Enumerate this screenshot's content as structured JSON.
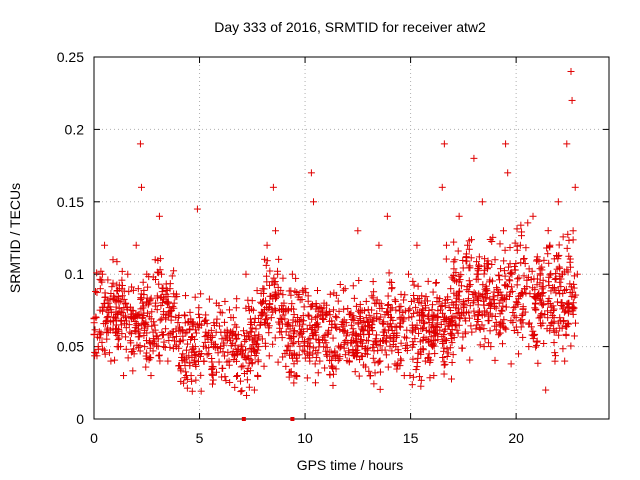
{
  "chart_data": {
    "type": "scatter",
    "title": "Day 333 of 2016, SRMTID for receiver atw2",
    "xlabel": "GPS time / hours",
    "ylabel": "SRMTID / TECUs",
    "xlim": [
      0,
      24.4
    ],
    "ylim": [
      0,
      0.25
    ],
    "x_ticks": [
      0,
      5,
      10,
      15,
      20
    ],
    "x_tick_labels": [
      "0",
      "5",
      "10",
      "15",
      "20"
    ],
    "y_ticks": [
      0,
      0.05,
      0.1,
      0.15,
      0.2,
      0.25
    ],
    "y_tick_labels": [
      "0",
      "0.05",
      "0.1",
      "0.15",
      "0.2",
      "0.25"
    ],
    "grid": true,
    "marker": "+",
    "color": "#e00000",
    "series": [
      {
        "name": "SRMTID",
        "points": [
          [
            0.1,
            0.07
          ],
          [
            0.2,
            0.05
          ],
          [
            0.3,
            0.09
          ],
          [
            0.4,
            0.1
          ],
          [
            0.5,
            0.12
          ],
          [
            0.6,
            0.06
          ],
          [
            0.7,
            0.08
          ],
          [
            0.8,
            0.04
          ],
          [
            0.9,
            0.11
          ],
          [
            1.0,
            0.07
          ],
          [
            1.1,
            0.05
          ],
          [
            1.2,
            0.09
          ],
          [
            1.3,
            0.065
          ],
          [
            1.4,
            0.03
          ],
          [
            1.5,
            0.08
          ],
          [
            1.6,
            0.1
          ],
          [
            1.7,
            0.06
          ],
          [
            1.8,
            0.075
          ],
          [
            1.9,
            0.045
          ],
          [
            2.0,
            0.12
          ],
          [
            2.1,
            0.09
          ],
          [
            2.2,
            0.19
          ],
          [
            2.25,
            0.16
          ],
          [
            2.3,
            0.07
          ],
          [
            2.4,
            0.05
          ],
          [
            2.5,
            0.1
          ],
          [
            2.6,
            0.08
          ],
          [
            2.7,
            0.03
          ],
          [
            2.8,
            0.06
          ],
          [
            2.9,
            0.11
          ],
          [
            3.0,
            0.085
          ],
          [
            3.1,
            0.14
          ],
          [
            3.2,
            0.1
          ],
          [
            3.3,
            0.05
          ],
          [
            3.4,
            0.07
          ],
          [
            3.5,
            0.04
          ],
          [
            3.6,
            0.09
          ],
          [
            3.7,
            0.06
          ],
          [
            3.8,
            0.08
          ],
          [
            3.9,
            0.05
          ],
          [
            4.0,
            0.07
          ],
          [
            4.2,
            0.045
          ],
          [
            4.4,
            0.06
          ],
          [
            4.6,
            0.03
          ],
          [
            4.8,
            0.05
          ],
          [
            4.9,
            0.145
          ],
          [
            5.0,
            0.07
          ],
          [
            5.2,
            0.04
          ],
          [
            5.4,
            0.055
          ],
          [
            5.6,
            0.035
          ],
          [
            5.8,
            0.08
          ],
          [
            6.0,
            0.05
          ],
          [
            6.2,
            0.06
          ],
          [
            6.4,
            0.04
          ],
          [
            6.6,
            0.07
          ],
          [
            6.8,
            0.03
          ],
          [
            7.0,
            0.05
          ],
          [
            7.2,
            0.1
          ],
          [
            7.3,
            0.035
          ],
          [
            7.4,
            0.06
          ],
          [
            7.6,
            0.02
          ],
          [
            7.8,
            0.05
          ],
          [
            8.0,
            0.09
          ],
          [
            8.2,
            0.12
          ],
          [
            8.4,
            0.07
          ],
          [
            8.5,
            0.16
          ],
          [
            8.6,
            0.13
          ],
          [
            8.7,
            0.1
          ],
          [
            8.8,
            0.06
          ],
          [
            9.0,
            0.08
          ],
          [
            9.2,
            0.05
          ],
          [
            9.4,
            0.1
          ],
          [
            9.6,
            0.03
          ],
          [
            9.8,
            0.06
          ],
          [
            10.0,
            0.09
          ],
          [
            10.2,
            0.05
          ],
          [
            10.3,
            0.17
          ],
          [
            10.4,
            0.15
          ],
          [
            10.5,
            0.07
          ],
          [
            10.7,
            0.04
          ],
          [
            10.9,
            0.08
          ],
          [
            11.1,
            0.06
          ],
          [
            11.3,
            0.035
          ],
          [
            11.5,
            0.07
          ],
          [
            11.7,
            0.05
          ],
          [
            11.9,
            0.09
          ],
          [
            12.1,
            0.04
          ],
          [
            12.3,
            0.06
          ],
          [
            12.5,
            0.13
          ],
          [
            12.7,
            0.05
          ],
          [
            12.9,
            0.07
          ],
          [
            13.1,
            0.03
          ],
          [
            13.3,
            0.08
          ],
          [
            13.5,
            0.12
          ],
          [
            13.7,
            0.06
          ],
          [
            13.9,
            0.14
          ],
          [
            14.1,
            0.09
          ],
          [
            14.3,
            0.05
          ],
          [
            14.5,
            0.07
          ],
          [
            14.7,
            0.03
          ],
          [
            14.9,
            0.1
          ],
          [
            15.1,
            0.06
          ],
          [
            15.3,
            0.12
          ],
          [
            15.5,
            0.08
          ],
          [
            15.7,
            0.04
          ],
          [
            15.9,
            0.06
          ],
          [
            16.1,
            0.03
          ],
          [
            16.3,
            0.07
          ],
          [
            16.5,
            0.16
          ],
          [
            16.6,
            0.19
          ],
          [
            16.7,
            0.12
          ],
          [
            16.9,
            0.09
          ],
          [
            17.1,
            0.11
          ],
          [
            17.3,
            0.14
          ],
          [
            17.5,
            0.08
          ],
          [
            17.7,
            0.12
          ],
          [
            17.9,
            0.06
          ],
          [
            18.0,
            0.18
          ],
          [
            18.2,
            0.1
          ],
          [
            18.4,
            0.15
          ],
          [
            18.6,
            0.09
          ],
          [
            18.8,
            0.05
          ],
          [
            19.0,
            0.11
          ],
          [
            19.2,
            0.08
          ],
          [
            19.4,
            0.13
          ],
          [
            19.5,
            0.19
          ],
          [
            19.6,
            0.17
          ],
          [
            19.8,
            0.1
          ],
          [
            20.0,
            0.07
          ],
          [
            20.2,
            0.12
          ],
          [
            20.4,
            0.09
          ],
          [
            20.6,
            0.05
          ],
          [
            20.8,
            0.14
          ],
          [
            21.0,
            0.11
          ],
          [
            21.2,
            0.08
          ],
          [
            21.4,
            0.02
          ],
          [
            21.6,
            0.12
          ],
          [
            21.8,
            0.07
          ],
          [
            22.0,
            0.15
          ],
          [
            22.2,
            0.1
          ],
          [
            22.3,
            0.04
          ],
          [
            22.4,
            0.19
          ],
          [
            22.5,
            0.08
          ],
          [
            22.6,
            0.24
          ],
          [
            22.65,
            0.22
          ],
          [
            22.7,
            0.13
          ],
          [
            22.8,
            0.16
          ],
          [
            22.9,
            0.1
          ]
        ],
        "zero_markers_x": [
          7.1,
          9.4
        ]
      }
    ]
  }
}
